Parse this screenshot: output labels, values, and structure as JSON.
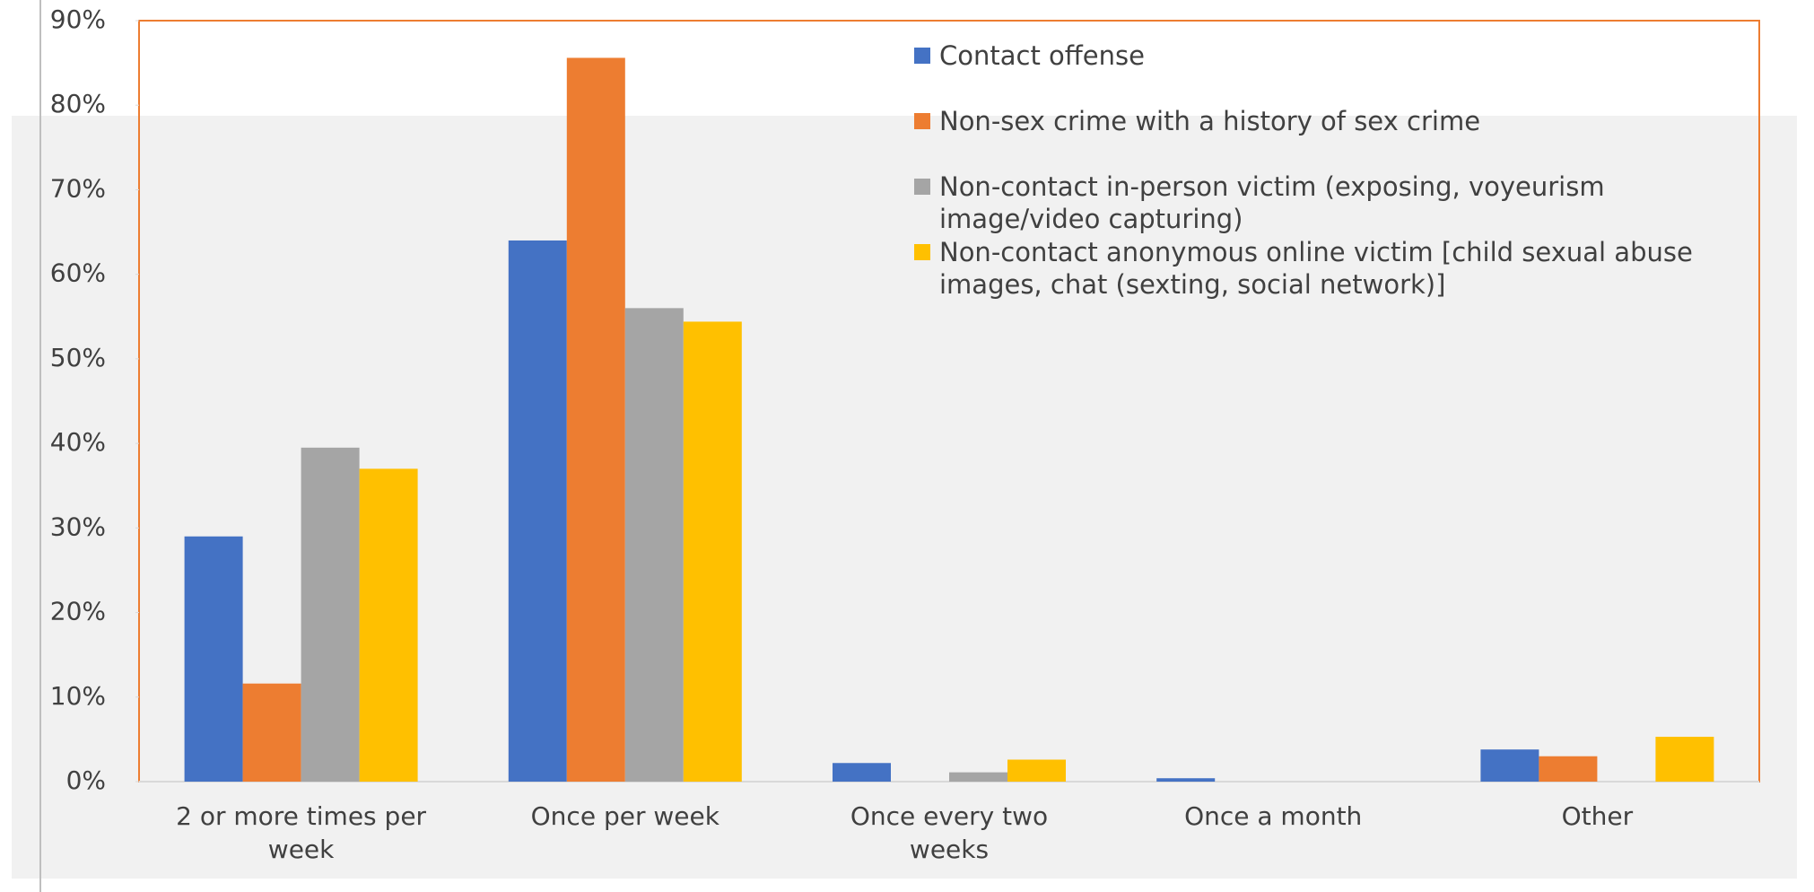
{
  "chart_data": {
    "type": "bar",
    "categories": [
      "2 or more times per week",
      "Once per week",
      "Once every two weeks",
      "Once a month",
      "Other"
    ],
    "series": [
      {
        "name": "Contact offense",
        "color": "#4472c4",
        "values": [
          29,
          64,
          2.2,
          0.4,
          3.8
        ]
      },
      {
        "name": "Non-sex crime with a history of sex crime",
        "color": "#ed7d31",
        "values": [
          11.6,
          85.6,
          0,
          0,
          3
        ]
      },
      {
        "name": "Non-contact in-person victim (exposing, voyeurism image/video capturing)",
        "color": "#a5a5a5",
        "values": [
          39.5,
          56,
          1.1,
          0,
          0
        ]
      },
      {
        "name": "Non-contact anonymous online victim [child sexual abuse images, chat (sexting, social network)]",
        "color": "#ffc000",
        "values": [
          37,
          54.4,
          2.6,
          0,
          5.3
        ]
      }
    ],
    "ylim": [
      0,
      90
    ],
    "yticks": [
      {
        "value": 0,
        "label": "0%"
      },
      {
        "value": 10,
        "label": "10%"
      },
      {
        "value": 20,
        "label": "20%"
      },
      {
        "value": 30,
        "label": "30%"
      },
      {
        "value": 40,
        "label": "40%"
      },
      {
        "value": 50,
        "label": "50%"
      },
      {
        "value": 60,
        "label": "60%"
      },
      {
        "value": 70,
        "label": "70%"
      },
      {
        "value": 80,
        "label": "80%"
      },
      {
        "value": 90,
        "label": "90%"
      }
    ],
    "legend": "top-right"
  }
}
